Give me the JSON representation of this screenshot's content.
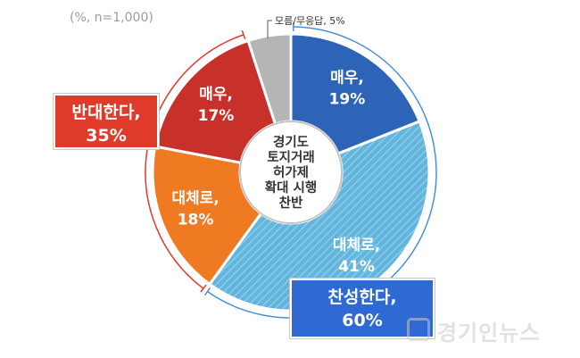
{
  "note": "(%, n=1,000)",
  "center_label": [
    "경기도",
    "토지거래",
    "허가제",
    "확대 시행",
    "찬반"
  ],
  "groups": {
    "oppose": [
      "반대한다,",
      "35%"
    ],
    "support": [
      "찬성한다,",
      "60%"
    ]
  },
  "watermark": "경기인뉴스",
  "chart_data": {
    "type": "pie",
    "categories": [
      "매우, 19%",
      "대체로, 41%",
      "대체로, 18%",
      "매우, 17%",
      "모름/무응답, 5%"
    ],
    "slices": [
      {
        "label": [
          "매우,",
          "19%"
        ],
        "value": 19,
        "group": "찬성한다",
        "color": "#2e64b8"
      },
      {
        "label": [
          "대체로,",
          "41%"
        ],
        "value": 41,
        "group": "찬성한다",
        "color": "#5fb5dd"
      },
      {
        "label": [
          "대체로,",
          "18%"
        ],
        "value": 18,
        "group": "반대한다",
        "color": "#ef7a22"
      },
      {
        "label": [
          "매우,",
          "17%"
        ],
        "value": 17,
        "group": "반대한다",
        "color": "#c8302a"
      },
      {
        "label": [
          "모름/무응답, 5%"
        ],
        "value": 5,
        "group": "",
        "color": "#b5b5b5"
      }
    ],
    "colors": {
      "support_bracket": "#4a8fd8",
      "oppose_bracket": "#e03a2a"
    }
  }
}
